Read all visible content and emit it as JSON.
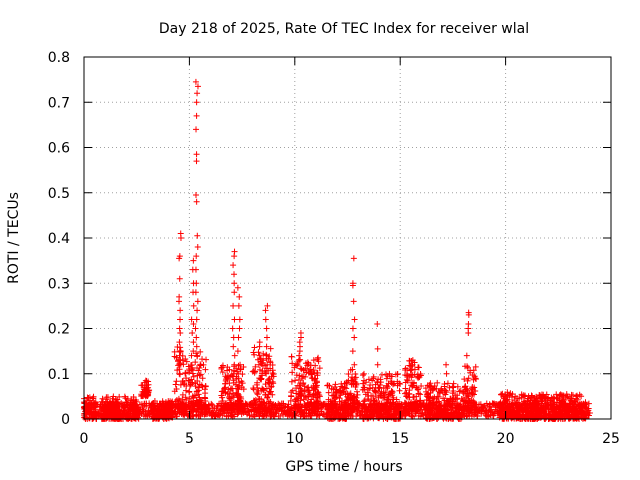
{
  "chart_data": {
    "type": "scatter",
    "title": "Day 218 of 2025, Rate Of TEC Index for receiver wlal",
    "xlabel": "GPS time / hours",
    "ylabel": "ROTI / TECUs",
    "xlim": [
      0,
      25
    ],
    "ylim": [
      0,
      0.8
    ],
    "xticks": [
      "0",
      "5",
      "10",
      "15",
      "20",
      "25"
    ],
    "yticks": [
      "0",
      "0.1",
      "0.2",
      "0.3",
      "0.4",
      "0.5",
      "0.6",
      "0.7",
      "0.8"
    ],
    "grid": true,
    "marker": "+",
    "color": "#ff0000",
    "series": [
      {
        "name": "ROTI",
        "baseline": {
          "x_start": 0.0,
          "x_end": 24.0,
          "x_step": 0.05,
          "y_min": 0.005,
          "y_max": 0.035
        },
        "bursts": [
          {
            "x": [
              0.0,
              0.6
            ],
            "y": [
              0.0,
              0.055
            ]
          },
          {
            "x": [
              0.8,
              2.6
            ],
            "y": [
              0.0,
              0.05
            ]
          },
          {
            "x": [
              2.7,
              3.1
            ],
            "y": [
              0.05,
              0.085
            ]
          },
          {
            "x": [
              3.2,
              4.2
            ],
            "y": [
              0.0,
              0.04
            ]
          },
          {
            "x": [
              4.3,
              4.9
            ],
            "y": [
              0.02,
              0.16
            ]
          },
          {
            "x": [
              4.95,
              5.8
            ],
            "y": [
              0.02,
              0.15
            ]
          },
          {
            "x": [
              6.5,
              7.6
            ],
            "y": [
              0.02,
              0.12
            ]
          },
          {
            "x": [
              8.0,
              9.0
            ],
            "y": [
              0.02,
              0.16
            ]
          },
          {
            "x": [
              9.8,
              11.2
            ],
            "y": [
              0.02,
              0.14
            ]
          },
          {
            "x": [
              11.5,
              12.5
            ],
            "y": [
              0.0,
              0.08
            ]
          },
          {
            "x": [
              12.4,
              13.0
            ],
            "y": [
              0.02,
              0.11
            ]
          },
          {
            "x": [
              13.2,
              15.0
            ],
            "y": [
              0.0,
              0.1
            ]
          },
          {
            "x": [
              15.2,
              16.0
            ],
            "y": [
              0.02,
              0.13
            ]
          },
          {
            "x": [
              16.2,
              18.0
            ],
            "y": [
              0.0,
              0.08
            ]
          },
          {
            "x": [
              18.0,
              18.6
            ],
            "y": [
              0.02,
              0.12
            ]
          },
          {
            "x": [
              19.7,
              20.5
            ],
            "y": [
              0.0,
              0.06
            ]
          },
          {
            "x": [
              20.5,
              23.8
            ],
            "y": [
              0.0,
              0.055
            ]
          }
        ],
        "spikes": [
          {
            "x": 4.55,
            "y": [
              0.41,
              0.4,
              0.36,
              0.355,
              0.31,
              0.27,
              0.26,
              0.24,
              0.22,
              0.2,
              0.19,
              0.17,
              0.15,
              0.14,
              0.13,
              0.12,
              0.11,
              0.1
            ]
          },
          {
            "x": 5.15,
            "y": [
              0.35,
              0.33,
              0.3,
              0.28,
              0.25,
              0.22,
              0.21,
              0.19,
              0.17,
              0.15,
              0.14
            ]
          },
          {
            "x": 5.35,
            "y": [
              0.745,
              0.735,
              0.72,
              0.7,
              0.67,
              0.64,
              0.585,
              0.57,
              0.495,
              0.48,
              0.405,
              0.38,
              0.36,
              0.33,
              0.3,
              0.28,
              0.26,
              0.24,
              0.22,
              0.2,
              0.18,
              0.16,
              0.14
            ]
          },
          {
            "x": 7.1,
            "y": [
              0.37,
              0.36,
              0.34,
              0.32,
              0.3,
              0.28,
              0.25,
              0.22,
              0.2,
              0.18,
              0.16,
              0.14,
              0.12,
              0.1
            ]
          },
          {
            "x": 7.35,
            "y": [
              0.29,
              0.27,
              0.25,
              0.22,
              0.2,
              0.18,
              0.15,
              0.12,
              0.1,
              0.09
            ]
          },
          {
            "x": 8.65,
            "y": [
              0.25,
              0.24,
              0.22,
              0.2,
              0.18,
              0.16,
              0.14,
              0.12,
              0.1
            ]
          },
          {
            "x": 8.3,
            "y": [
              0.17,
              0.16,
              0.14,
              0.12
            ]
          },
          {
            "x": 10.25,
            "y": [
              0.19,
              0.18,
              0.17,
              0.16,
              0.15,
              0.14
            ]
          },
          {
            "x": 12.8,
            "y": [
              0.355,
              0.3,
              0.295,
              0.26,
              0.22,
              0.2,
              0.18,
              0.15,
              0.12
            ]
          },
          {
            "x": 13.9,
            "y": [
              0.21
            ]
          },
          {
            "x": 13.95,
            "y": [
              0.155,
              0.12
            ]
          },
          {
            "x": 15.6,
            "y": [
              0.13,
              0.12,
              0.11
            ]
          },
          {
            "x": 17.2,
            "y": [
              0.12,
              0.1
            ]
          },
          {
            "x": 18.2,
            "y": [
              0.235,
              0.23,
              0.21,
              0.2,
              0.19,
              0.14,
              0.09
            ]
          }
        ]
      }
    ]
  }
}
